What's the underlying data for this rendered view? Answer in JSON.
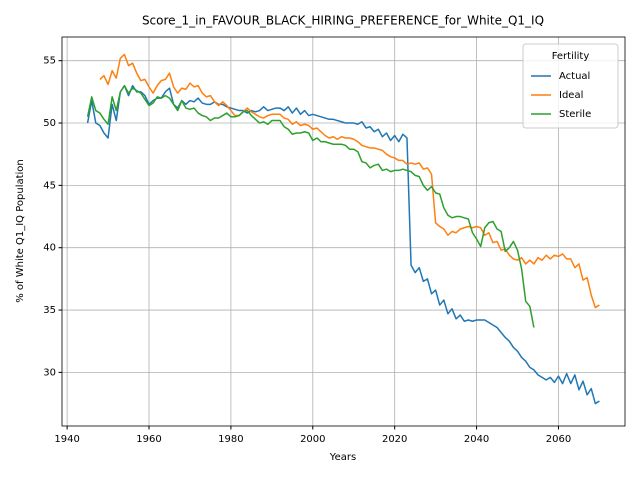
{
  "chart_data": {
    "type": "line",
    "title": "Score_1_in_FAVOUR_BLACK_HIRING_PREFERENCE_for_White_Q1_IQ",
    "x_label": "Years",
    "y_label": "% of White Q1_IQ Population",
    "legend_title": "Fertility",
    "legend_position": "upper right",
    "grid": true,
    "xlim": [
      1938.75,
      2076.25
    ],
    "ylim": [
      25.7,
      56.9
    ],
    "xticks": [
      1940,
      1960,
      1980,
      2000,
      2020,
      2040,
      2060
    ],
    "yticks": [
      30,
      35,
      40,
      45,
      50,
      55
    ],
    "x": [
      1945,
      1946,
      1947,
      1948,
      1949,
      1950,
      1951,
      1952,
      1953,
      1954,
      1955,
      1956,
      1957,
      1958,
      1959,
      1960,
      1961,
      1962,
      1963,
      1964,
      1965,
      1966,
      1967,
      1968,
      1969,
      1970,
      1971,
      1972,
      1973,
      1974,
      1975,
      1976,
      1977,
      1978,
      1979,
      1980,
      1981,
      1982,
      1983,
      1984,
      1985,
      1986,
      1987,
      1988,
      1989,
      1990,
      1991,
      1992,
      1993,
      1994,
      1995,
      1996,
      1997,
      1998,
      1999,
      2000,
      2001,
      2002,
      2003,
      2004,
      2005,
      2006,
      2007,
      2008,
      2009,
      2010,
      2011,
      2012,
      2013,
      2014,
      2015,
      2016,
      2017,
      2018,
      2019,
      2020,
      2021,
      2022,
      2023,
      2024,
      2025,
      2026,
      2027,
      2028,
      2029,
      2030,
      2031,
      2032,
      2033,
      2034,
      2035,
      2036,
      2037,
      2038,
      2039,
      2040,
      2041,
      2042,
      2043,
      2044,
      2045,
      2046,
      2047,
      2048,
      2049,
      2050,
      2051,
      2052,
      2053,
      2054,
      2055,
      2056,
      2057,
      2058,
      2059,
      2060,
      2061,
      2062,
      2063,
      2064,
      2065,
      2066,
      2067,
      2068,
      2069,
      2070
    ],
    "series": [
      {
        "name": "Actual",
        "color": "#1f77b4",
        "values": [
          50.0,
          51.8,
          50.0,
          49.8,
          49.2,
          48.8,
          51.5,
          50.2,
          52.5,
          53.0,
          52.2,
          53.0,
          52.5,
          52.5,
          52.2,
          51.5,
          51.8,
          52.0,
          52.0,
          52.5,
          52.8,
          51.5,
          51.2,
          51.8,
          51.5,
          51.8,
          51.7,
          52.0,
          51.6,
          51.5,
          51.5,
          51.7,
          51.5,
          51.5,
          51.3,
          51.2,
          51.1,
          51.0,
          51.0,
          50.8,
          51.0,
          50.9,
          51.0,
          51.3,
          51.0,
          51.1,
          51.2,
          51.2,
          51.0,
          51.3,
          50.8,
          51.2,
          50.7,
          51.0,
          50.6,
          50.7,
          50.6,
          50.5,
          50.4,
          50.3,
          50.3,
          50.2,
          50.1,
          50.0,
          50.0,
          50.0,
          49.9,
          50.1,
          49.6,
          49.7,
          49.3,
          49.5,
          48.9,
          49.2,
          48.6,
          49.0,
          48.5,
          49.1,
          48.8,
          38.6,
          38.0,
          38.4,
          37.3,
          37.5,
          36.3,
          36.6,
          35.4,
          35.8,
          34.7,
          35.1,
          34.3,
          34.6,
          34.1,
          34.2,
          34.1,
          34.2,
          34.2,
          34.2,
          34.0,
          33.8,
          33.6,
          33.2,
          32.8,
          32.5,
          32.0,
          31.7,
          31.2,
          30.9,
          30.4,
          30.2,
          29.8,
          29.6,
          29.4,
          29.6,
          29.2,
          29.7,
          29.1,
          29.9,
          29.1,
          29.8,
          28.6,
          29.3,
          28.2,
          28.7,
          27.5,
          27.7
        ]
      },
      {
        "name": "Ideal",
        "color": "#ff7f0e",
        "values": [
          null,
          null,
          null,
          53.5,
          53.8,
          53.1,
          54.2,
          53.6,
          55.2,
          55.5,
          54.6,
          54.8,
          54.0,
          53.4,
          53.5,
          52.9,
          52.4,
          53.0,
          53.4,
          53.5,
          54.0,
          52.9,
          52.4,
          52.8,
          52.7,
          53.2,
          52.9,
          53.0,
          52.4,
          52.1,
          52.2,
          51.7,
          51.4,
          51.7,
          51.4,
          51.0,
          50.6,
          50.6,
          50.9,
          51.2,
          50.9,
          50.7,
          50.5,
          50.4,
          50.6,
          50.7,
          50.7,
          50.7,
          50.4,
          50.3,
          49.9,
          50.1,
          49.8,
          49.9,
          49.8,
          49.5,
          49.6,
          49.3,
          49.0,
          48.8,
          48.9,
          48.7,
          48.9,
          48.8,
          48.8,
          48.7,
          48.5,
          48.2,
          48.1,
          48.0,
          48.0,
          47.9,
          47.8,
          47.5,
          47.3,
          47.2,
          47.0,
          47.0,
          46.7,
          46.8,
          46.7,
          46.8,
          46.3,
          46.4,
          45.9,
          42.0,
          41.7,
          41.5,
          41.0,
          41.3,
          41.2,
          41.5,
          41.6,
          41.7,
          41.6,
          41.7,
          41.6,
          41.0,
          41.2,
          40.4,
          40.5,
          39.8,
          39.9,
          39.4,
          39.1,
          39.0,
          39.2,
          38.7,
          39.0,
          38.7,
          39.2,
          39.0,
          39.4,
          39.1,
          39.4,
          39.3,
          39.5,
          39.1,
          39.1,
          38.4,
          38.7,
          37.4,
          37.6,
          36.2,
          35.2,
          35.4
        ]
      },
      {
        "name": "Sterile",
        "color": "#2ca02c",
        "values": [
          50.5,
          52.1,
          51.0,
          50.8,
          50.3,
          49.9,
          52.1,
          51.0,
          52.5,
          53.0,
          52.4,
          52.8,
          52.6,
          52.4,
          51.9,
          51.4,
          51.6,
          52.1,
          52.0,
          52.2,
          52.0,
          51.5,
          51.0,
          51.8,
          51.2,
          51.1,
          51.2,
          50.8,
          50.6,
          50.5,
          50.2,
          50.4,
          50.4,
          50.6,
          50.8,
          50.5,
          50.5,
          50.6,
          50.9,
          51.0,
          50.6,
          50.3,
          50.0,
          50.1,
          49.9,
          50.2,
          50.2,
          50.2,
          49.7,
          49.5,
          49.1,
          49.2,
          49.2,
          49.3,
          49.2,
          48.6,
          48.8,
          48.5,
          48.5,
          48.4,
          48.3,
          48.3,
          48.3,
          48.2,
          47.9,
          47.9,
          47.7,
          46.9,
          46.8,
          46.4,
          46.6,
          46.7,
          46.2,
          46.3,
          46.1,
          46.2,
          46.2,
          46.3,
          46.2,
          46.1,
          45.8,
          45.7,
          45.0,
          44.6,
          44.9,
          44.4,
          44.3,
          43.2,
          42.6,
          42.4,
          42.5,
          42.5,
          42.4,
          42.3,
          41.2,
          40.7,
          40.1,
          41.6,
          42.0,
          42.1,
          41.5,
          41.3,
          39.7,
          40.0,
          40.5,
          39.8,
          38.3,
          35.7,
          35.3,
          33.6,
          null,
          null,
          null,
          null,
          null,
          null,
          null,
          null,
          null,
          null,
          null,
          null,
          null,
          null,
          null,
          null
        ]
      }
    ]
  }
}
